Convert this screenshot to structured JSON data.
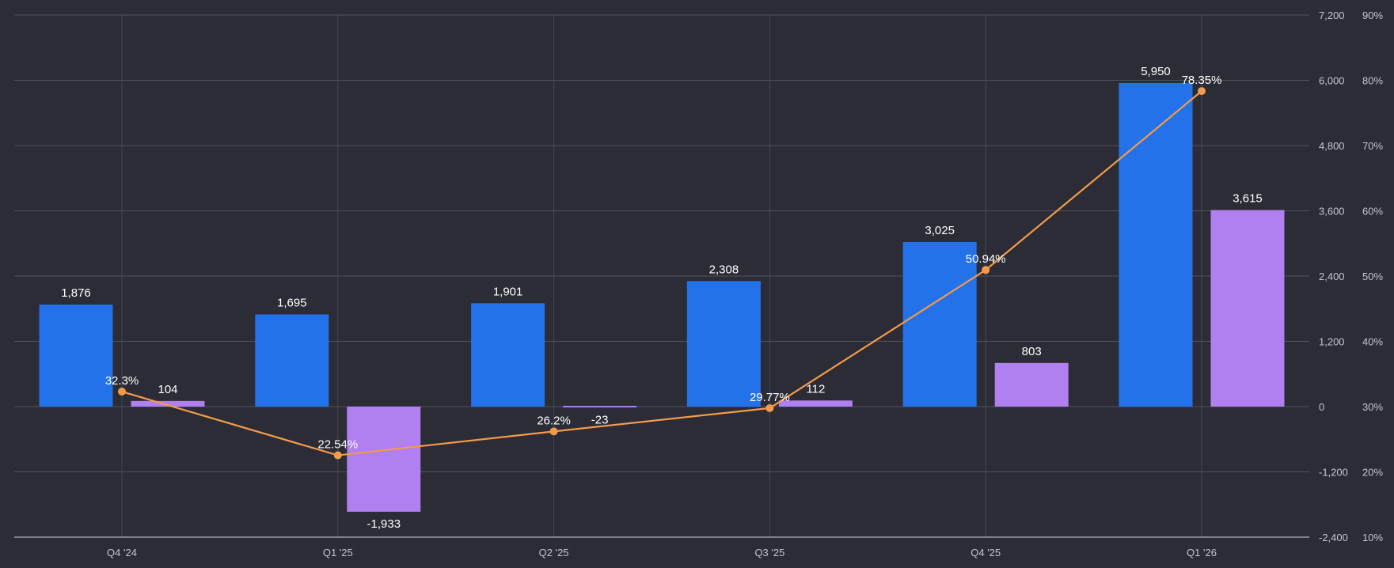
{
  "chart_data": {
    "type": "bar",
    "categories": [
      "Q4 '24",
      "Q1 '25",
      "Q2 '25",
      "Q3 '25",
      "Q4 '25",
      "Q1 '26"
    ],
    "series": [
      {
        "type": "bar",
        "axis": "left",
        "color": "#2472ea",
        "values": [
          1876,
          1695,
          1901,
          2308,
          3025,
          5950
        ]
      },
      {
        "type": "bar",
        "axis": "left",
        "color": "#b07ff0",
        "values": [
          104,
          -1933,
          -23,
          112,
          803,
          3615
        ]
      },
      {
        "type": "line",
        "axis": "right",
        "color": "#f39a4b",
        "values": [
          32.3,
          22.54,
          26.2,
          29.77,
          50.94,
          78.35
        ]
      }
    ],
    "bar_labels": [
      [
        "1,876",
        "1,695",
        "1,901",
        "2,308",
        "3,025",
        "5,950"
      ],
      [
        "104",
        "-1,933",
        "-23",
        "112",
        "803",
        "3,615"
      ]
    ],
    "line_labels": [
      "32.3%",
      "22.54%",
      "26.2%",
      "29.77%",
      "50.94%",
      "78.35%"
    ],
    "y_left": {
      "ylim": [
        -2400,
        7200
      ],
      "ticks": [
        7200,
        6000,
        4800,
        3600,
        2400,
        1200,
        0,
        -1200,
        -2400
      ],
      "tick_labels": [
        "7,200",
        "6,000",
        "4,800",
        "3,600",
        "2,400",
        "1,200",
        "0",
        "-1,200",
        "-2,400"
      ]
    },
    "y_right": {
      "ylim": [
        10,
        90
      ],
      "ticks": [
        90,
        80,
        70,
        60,
        50,
        40,
        30,
        20,
        10
      ],
      "tick_labels": [
        "90%",
        "80%",
        "70%",
        "60%",
        "50%",
        "40%",
        "30%",
        "20%",
        "10%"
      ]
    },
    "title": "",
    "xlabel": "",
    "ylabel": "",
    "grid": true,
    "background": "#2b2c35"
  }
}
